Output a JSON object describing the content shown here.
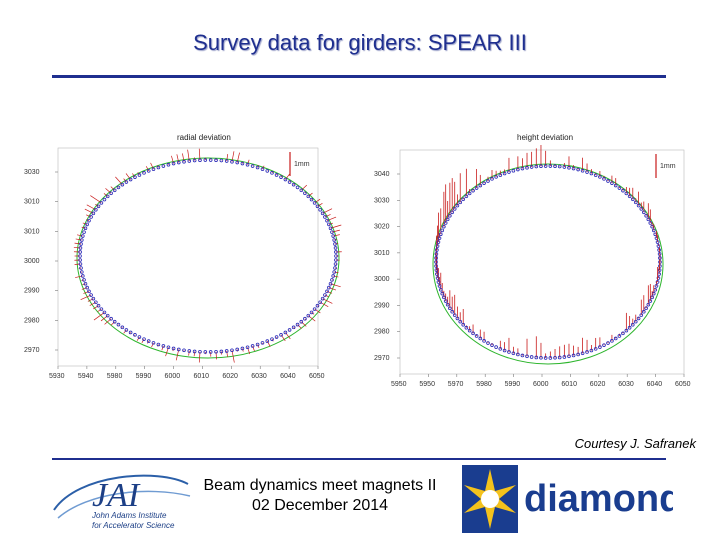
{
  "slide": {
    "title": "Survey data for girders: SPEAR III",
    "credit": "Courtesy J. Safranek",
    "footer_line1": "Beam dynamics meet magnets II",
    "footer_line2": "02 December 2014",
    "accent_color": "#1f2f8f"
  },
  "logos": {
    "jai_mark": "JAI",
    "jai_line1": "John Adams Institute",
    "jai_line2": "for Accelerator Science",
    "diamond_word": "diamond"
  },
  "chart_data": [
    {
      "type": "scatter",
      "title": "radial deviation",
      "legend_label": "1mm",
      "legend_placement": "top-right",
      "x_ticks": [
        "5930",
        "5940",
        "5980",
        "5990",
        "6000",
        "6010",
        "6020",
        "6030",
        "6040",
        "6050"
      ],
      "y_ticks": [
        "3030",
        "3010",
        "3010",
        "3000",
        "2990",
        "2980",
        "2970"
      ],
      "xlim": [
        5930,
        6050
      ],
      "ylim": [
        2965,
        3037
      ],
      "grid": false,
      "series": [
        {
          "color": "#2a2ab8",
          "marker": "survey-points"
        },
        {
          "color": "#c81a1a",
          "marker": "deviation-bars"
        },
        {
          "color": "#2db52d",
          "marker": "reference-orbit"
        }
      ]
    },
    {
      "type": "scatter",
      "title": "height deviation",
      "legend_label": "1mm",
      "legend_placement": "top-right",
      "x_ticks": [
        "5950",
        "5950",
        "5970",
        "5980",
        "5990",
        "6000",
        "6010",
        "6020",
        "6030",
        "6040",
        "6050"
      ],
      "y_ticks": [
        "3040",
        "3030",
        "3020",
        "3010",
        "3000",
        "2990",
        "2980",
        "2970"
      ],
      "xlim": [
        5948,
        6052
      ],
      "ylim": [
        2965,
        3045
      ],
      "grid": false,
      "series": [
        {
          "color": "#2a2ab8",
          "marker": "survey-points"
        },
        {
          "color": "#c81a1a",
          "marker": "deviation-bars"
        },
        {
          "color": "#2db52d",
          "marker": "reference-orbit"
        }
      ]
    }
  ]
}
